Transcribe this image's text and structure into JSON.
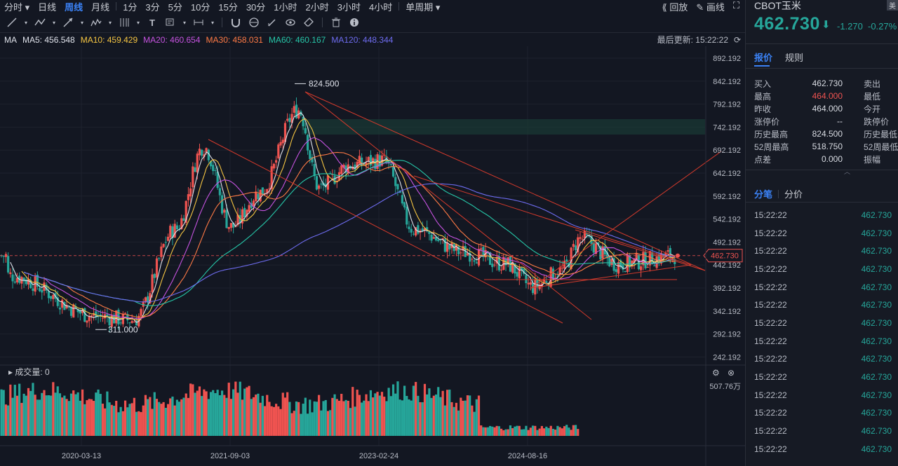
{
  "toolbar": {
    "periods": [
      "分时",
      "日线",
      "周线",
      "月线",
      "1分",
      "3分",
      "5分",
      "10分",
      "15分",
      "30分",
      "1小时",
      "2小时",
      "3小时",
      "4小时",
      "单周期"
    ],
    "active_period": "周线",
    "replay_label": "回放",
    "draw_label": "画线"
  },
  "legend": {
    "label": "MA",
    "ma5": "MA5: 456.548",
    "ma10": "MA10: 459.429",
    "ma20": "MA20: 460.654",
    "ma30": "MA30: 458.031",
    "ma60": "MA60: 460.167",
    "ma120": "MA120: 448.344",
    "last_update": "最后更新: 15:22:22",
    "colors": {
      "ma5": "#e0e3eb",
      "ma10": "#f5c542",
      "ma20": "#c653e0",
      "ma30": "#ff7a45",
      "ma60": "#26c6a8",
      "ma120": "#6e6cf0"
    }
  },
  "chart_data": {
    "type": "candlestick",
    "y_ticks": [
      "892.192",
      "842.192",
      "792.192",
      "742.192",
      "692.192",
      "642.192",
      "592.192",
      "542.192",
      "492.192",
      "442.192",
      "392.192",
      "342.192",
      "292.192",
      "242.192"
    ],
    "ylim": [
      242.192,
      892.192
    ],
    "x_ticks": [
      "2020-03-13",
      "2021-09-03",
      "2023-02-24",
      "2024-08-16"
    ],
    "high_label": "824.500",
    "low_label": "311.000",
    "current_price": "462.730",
    "key_points": [
      {
        "date": "2019-12",
        "close": 420
      },
      {
        "date": "2020-04",
        "close": 330
      },
      {
        "date": "2020-08",
        "close": 322
      },
      {
        "date": "2021-01",
        "close": 520
      },
      {
        "date": "2021-05",
        "close": 700
      },
      {
        "date": "2021-09",
        "close": 525
      },
      {
        "date": "2022-01",
        "close": 600
      },
      {
        "date": "2022-05",
        "close": 780
      },
      {
        "date": "2022-08",
        "close": 610
      },
      {
        "date": "2022-12",
        "close": 660
      },
      {
        "date": "2023-02",
        "close": 670
      },
      {
        "date": "2023-06",
        "close": 520
      },
      {
        "date": "2023-11",
        "close": 470
      },
      {
        "date": "2024-04",
        "close": 445
      },
      {
        "date": "2024-08",
        "close": 395
      },
      {
        "date": "2024-11",
        "close": 430
      },
      {
        "date": "2025-02",
        "close": 500
      },
      {
        "date": "2025-06",
        "close": 445
      },
      {
        "date": "2025-09",
        "close": 462.73
      }
    ],
    "volume_label": "成交量: 0",
    "volume_max_label": "507.76万"
  },
  "panel": {
    "symbol": "CBOT玉米",
    "tag": "美",
    "price": "462.730",
    "change": "-1.270",
    "change_pct": "-0.27%",
    "tabs": [
      "报价",
      "规则"
    ],
    "quote": [
      {
        "label": "买入",
        "value": "462.730",
        "label2": "卖出"
      },
      {
        "label": "最高",
        "value": "464.000",
        "label2": "最低",
        "red": true
      },
      {
        "label": "昨收",
        "value": "464.000",
        "label2": "今开"
      },
      {
        "label": "涨停价",
        "value": "--",
        "label2": "跌停价"
      },
      {
        "label": "历史最高",
        "value": "824.500",
        "label2": "历史最低"
      },
      {
        "label": "52周最高",
        "value": "518.750",
        "label2": "52周最低"
      },
      {
        "label": "点差",
        "value": "0.000",
        "label2": "振幅"
      }
    ],
    "tabs2": [
      "分笔",
      "分价"
    ],
    "ticks": [
      {
        "time": "15:22:22",
        "price": "462.730"
      },
      {
        "time": "15:22:22",
        "price": "462.730"
      },
      {
        "time": "15:22:22",
        "price": "462.730"
      },
      {
        "time": "15:22:22",
        "price": "462.730"
      },
      {
        "time": "15:22:22",
        "price": "462.730"
      },
      {
        "time": "15:22:22",
        "price": "462.730"
      },
      {
        "time": "15:22:22",
        "price": "462.730"
      },
      {
        "time": "15:22:22",
        "price": "462.730"
      },
      {
        "time": "15:22:22",
        "price": "462.730"
      },
      {
        "time": "15:22:22",
        "price": "462.730"
      },
      {
        "time": "15:22:22",
        "price": "462.730"
      },
      {
        "time": "15:22:22",
        "price": "462.730"
      },
      {
        "time": "15:22:22",
        "price": "462.730"
      },
      {
        "time": "15:22:22",
        "price": "462.730"
      }
    ]
  }
}
